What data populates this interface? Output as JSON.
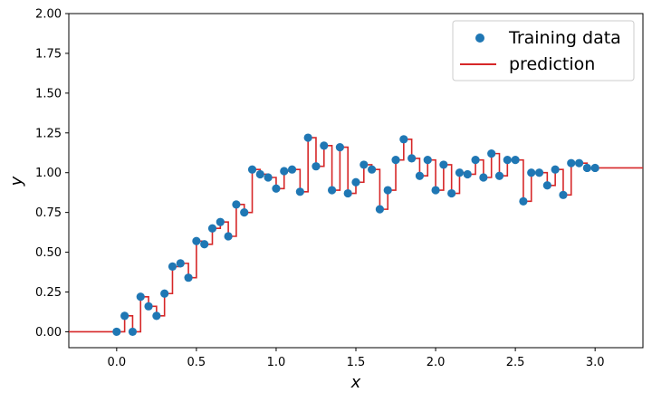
{
  "chart_data": {
    "type": "line",
    "xlabel": "x",
    "ylabel": "y",
    "xlim": [
      -0.3,
      3.3
    ],
    "ylim": [
      -0.1,
      2.0
    ],
    "xticks": [
      0.0,
      0.5,
      1.0,
      1.5,
      2.0,
      2.5,
      3.0
    ],
    "xtick_labels": [
      "0.0",
      "0.5",
      "1.0",
      "1.5",
      "2.0",
      "2.5",
      "3.0"
    ],
    "yticks": [
      0.0,
      0.25,
      0.5,
      0.75,
      1.0,
      1.25,
      1.5,
      1.75,
      2.0
    ],
    "ytick_labels": [
      "0.00",
      "0.25",
      "0.50",
      "0.75",
      "1.00",
      "1.25",
      "1.50",
      "1.75",
      "2.00"
    ],
    "grid": false,
    "legend_position": "top-right",
    "legend": [
      {
        "label": "Training data",
        "kind": "marker",
        "color": "#1f77b4"
      },
      {
        "label": "prediction",
        "kind": "line",
        "color": "#d62728"
      }
    ],
    "series": [
      {
        "name": "Training data",
        "kind": "scatter",
        "color": "#1f77b4",
        "x": [
          0.0,
          0.05,
          0.1,
          0.15,
          0.2,
          0.25,
          0.3,
          0.35,
          0.4,
          0.45,
          0.5,
          0.55,
          0.6,
          0.65,
          0.7,
          0.75,
          0.8,
          0.85,
          0.9,
          0.95,
          1.0,
          1.05,
          1.1,
          1.15,
          1.2,
          1.25,
          1.3,
          1.35,
          1.4,
          1.45,
          1.5,
          1.55,
          1.6,
          1.65,
          1.7,
          1.75,
          1.8,
          1.85,
          1.9,
          1.95,
          2.0,
          2.05,
          2.1,
          2.15,
          2.2,
          2.25,
          2.3,
          2.35,
          2.4,
          2.45,
          2.5,
          2.55,
          2.6,
          2.65,
          2.7,
          2.75,
          2.8,
          2.85,
          2.9,
          2.95,
          3.0
        ],
        "y": [
          0.0,
          0.1,
          0.0,
          0.22,
          0.16,
          0.1,
          0.24,
          0.41,
          0.43,
          0.34,
          0.57,
          0.55,
          0.65,
          0.69,
          0.6,
          0.8,
          0.75,
          1.02,
          0.99,
          0.97,
          0.9,
          1.01,
          1.02,
          0.88,
          1.22,
          1.04,
          1.17,
          0.89,
          1.16,
          0.87,
          0.94,
          1.05,
          1.02,
          0.77,
          0.89,
          1.08,
          1.21,
          1.09,
          0.98,
          1.08,
          0.89,
          1.05,
          0.87,
          1.0,
          0.99,
          1.08,
          0.97,
          1.12,
          0.98,
          1.08,
          1.08,
          0.82,
          1.0,
          1.0,
          0.92,
          1.02,
          0.86,
          1.06,
          1.06,
          1.03,
          1.03
        ]
      },
      {
        "name": "prediction",
        "kind": "step-line",
        "color": "#d62728",
        "x": [
          -0.3,
          0.0,
          0.05,
          0.1,
          0.15,
          0.2,
          0.25,
          0.3,
          0.35,
          0.4,
          0.45,
          0.5,
          0.55,
          0.6,
          0.65,
          0.7,
          0.75,
          0.8,
          0.85,
          0.9,
          0.95,
          1.0,
          1.05,
          1.1,
          1.15,
          1.2,
          1.25,
          1.3,
          1.35,
          1.4,
          1.45,
          1.5,
          1.55,
          1.6,
          1.65,
          1.7,
          1.75,
          1.8,
          1.85,
          1.9,
          1.95,
          2.0,
          2.05,
          2.1,
          2.15,
          2.2,
          2.25,
          2.3,
          2.35,
          2.4,
          2.45,
          2.5,
          2.55,
          2.6,
          2.65,
          2.7,
          2.75,
          2.8,
          2.85,
          2.9,
          2.95,
          3.0,
          3.3
        ],
        "y": [
          0.0,
          0.0,
          0.1,
          0.0,
          0.22,
          0.16,
          0.1,
          0.24,
          0.41,
          0.43,
          0.34,
          0.57,
          0.55,
          0.65,
          0.69,
          0.6,
          0.8,
          0.75,
          1.02,
          0.99,
          0.97,
          0.9,
          1.01,
          1.02,
          0.88,
          1.22,
          1.04,
          1.17,
          0.89,
          1.16,
          0.87,
          0.94,
          1.05,
          1.02,
          0.77,
          0.89,
          1.08,
          1.21,
          1.09,
          0.98,
          1.08,
          0.89,
          1.05,
          0.87,
          1.0,
          0.99,
          1.08,
          0.97,
          1.12,
          0.98,
          1.08,
          1.08,
          0.82,
          1.0,
          1.0,
          0.92,
          1.02,
          0.86,
          1.06,
          1.06,
          1.03,
          1.03,
          1.03
        ]
      }
    ]
  }
}
